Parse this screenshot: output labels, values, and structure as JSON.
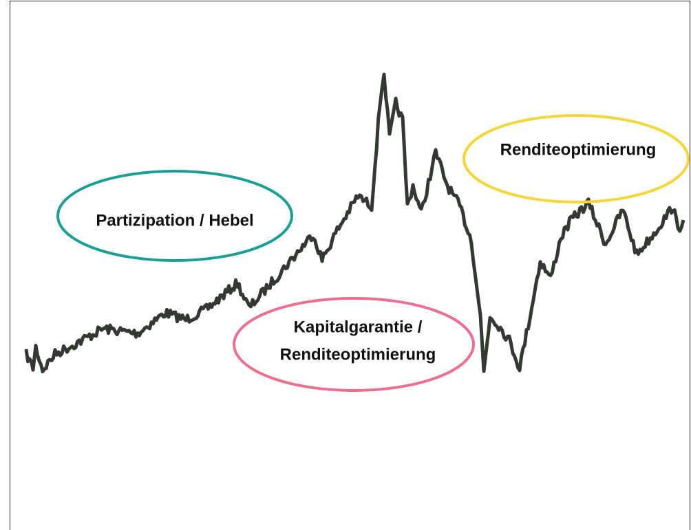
{
  "annotations": [
    {
      "lines": [
        "Partizipation / Hebel"
      ]
    },
    {
      "lines": [
        "Kapitalgarantie /",
        "Renditeoptimierung"
      ]
    },
    {
      "lines": [
        "Renditeoptimierung"
      ]
    }
  ]
}
